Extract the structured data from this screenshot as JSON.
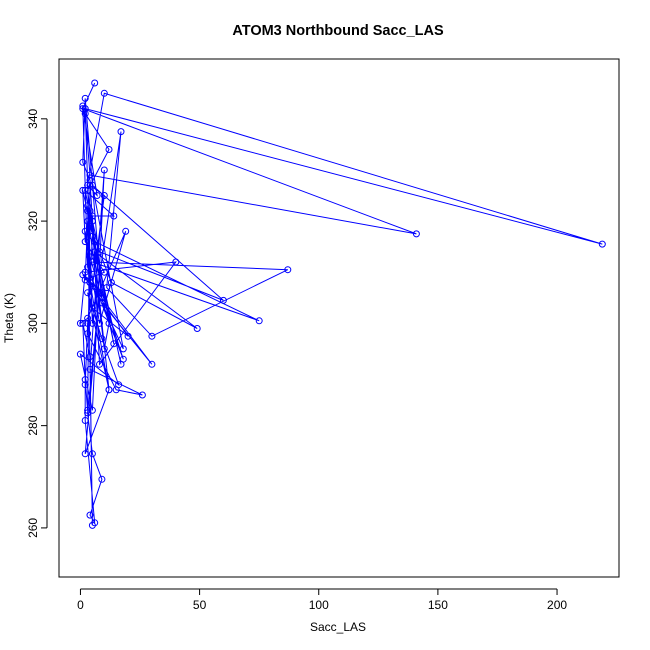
{
  "chart_data": {
    "type": "line",
    "title": "ATOM3 Northbound Sacc_LAS",
    "xlabel": "Sacc_LAS",
    "ylabel": "Theta (K)",
    "xlim": [
      -9,
      226
    ],
    "ylim": [
      250.4,
      351.7
    ],
    "xticks": [
      0,
      50,
      100,
      150,
      200
    ],
    "yticks": [
      260,
      280,
      300,
      320,
      340
    ],
    "grid": false,
    "legend": "none",
    "color": "#0000ff",
    "series": [
      {
        "x": [
          6,
          1,
          141,
          4,
          2,
          12,
          3,
          9,
          2,
          1,
          4,
          5,
          6,
          75,
          5,
          87,
          30,
          11,
          17,
          5,
          3,
          10,
          12,
          4,
          2,
          219,
          10,
          3,
          7,
          1,
          3,
          18,
          9,
          1,
          20,
          5,
          2,
          8,
          19,
          3,
          0,
          2,
          40,
          8,
          5,
          14,
          2,
          14,
          6,
          49,
          13,
          3,
          2,
          10,
          2,
          1,
          17,
          5,
          4,
          30,
          9,
          18,
          5,
          60,
          8,
          4,
          12,
          3,
          9,
          16,
          0,
          5,
          10,
          4,
          26,
          15,
          3,
          4,
          12,
          2,
          8,
          3,
          5,
          9,
          4,
          6,
          2,
          2,
          3,
          10,
          4,
          3,
          2,
          1,
          4,
          5,
          3
        ],
        "y": [
          347,
          342,
          317.5,
          329,
          341,
          334,
          326,
          305,
          344,
          331.5,
          328,
          320,
          316,
          300.5,
          312,
          310.5,
          297.5,
          307,
          337.5,
          300,
          322,
          295,
          300,
          313,
          342,
          315.5,
          345,
          327,
          325,
          342.5,
          311,
          293,
          306,
          309.5,
          297.5,
          303,
          318,
          300,
          318,
          301,
          300,
          310,
          312,
          292,
          321,
          321,
          326,
          296,
          314,
          299,
          308,
          320,
          308.5,
          310,
          316,
          326,
          292,
          317,
          308,
          292,
          304,
          295,
          327,
          304.5,
          314,
          322,
          287,
          306,
          297,
          288,
          294,
          283,
          330,
          291,
          286,
          287,
          298,
          308,
          287,
          274.5,
          306,
          282.5,
          274.5,
          269.5,
          262.5,
          261,
          281,
          288,
          300,
          325,
          327,
          283,
          289,
          300,
          293.5,
          260.5,
          323
        ]
      }
    ]
  }
}
